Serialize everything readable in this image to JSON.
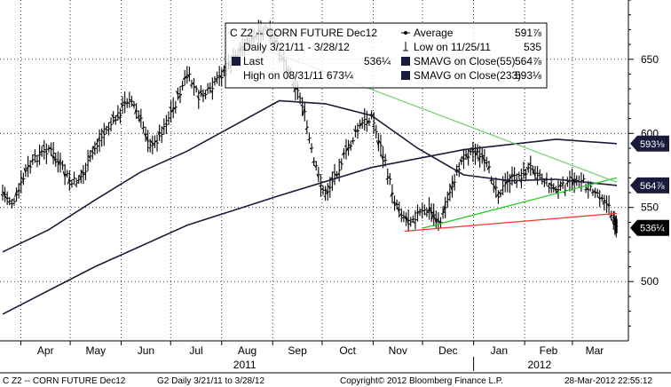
{
  "chart_data": {
    "type": "line",
    "title": "C Z2 -- CORN FUTURE Dec12",
    "subtitle": "Daily 3/21/11 - 3/28/12",
    "y_axis": {
      "side": "right",
      "ylim": [
        460,
        690
      ],
      "ticks": [
        500,
        550,
        600,
        650
      ]
    },
    "x_axis": {
      "month_labels": [
        "Apr",
        "May",
        "Jun",
        "Jul",
        "Aug",
        "Sep",
        "Oct",
        "Nov",
        "Dec",
        "Jan",
        "Feb",
        "Mar"
      ],
      "year_labels": [
        "2011",
        "2012"
      ]
    },
    "grid": true,
    "legend": {
      "placement": "top-center",
      "left": [
        {
          "label": "C Z2 -- CORN FUTURE Dec12",
          "value": ""
        },
        {
          "label": "Daily 3/21/11 - 3/28/12",
          "value": ""
        },
        {
          "label": "Last",
          "value": "536¼"
        },
        {
          "label": "High on 08/31/11 673¼",
          "value": ""
        }
      ],
      "right": [
        {
          "label": "Average",
          "value": "591⅞"
        },
        {
          "label": "Low on 11/25/11",
          "value": "535"
        },
        {
          "label": "SMAVG on Close(55)",
          "value": "564⅞"
        },
        {
          "label": "SMAVG on Close(233)",
          "value": "593⅛"
        }
      ]
    },
    "last_value_tags": [
      {
        "label": "593⅛",
        "value": 593.1,
        "color": "#1a1a3a"
      },
      {
        "label": "564⅞",
        "value": 564.9,
        "color": "#1a1a3a"
      },
      {
        "label": "536¼",
        "value": 536.25,
        "color": "#000000"
      }
    ],
    "series": [
      {
        "name": "C Z2 -- CORN FUTURE Dec12",
        "style": "ohlc-close",
        "color": "#000000",
        "points": [
          [
            "2011-03-21",
            560
          ],
          [
            "2011-03-28",
            552
          ],
          [
            "2011-04-04",
            574
          ],
          [
            "2011-04-11",
            584
          ],
          [
            "2011-04-18",
            590
          ],
          [
            "2011-04-25",
            578
          ],
          [
            "2011-05-02",
            566
          ],
          [
            "2011-05-09",
            572
          ],
          [
            "2011-05-16",
            590
          ],
          [
            "2011-05-23",
            602
          ],
          [
            "2011-05-30",
            612
          ],
          [
            "2011-06-06",
            625
          ],
          [
            "2011-06-13",
            608
          ],
          [
            "2011-06-20",
            590
          ],
          [
            "2011-06-27",
            605
          ],
          [
            "2011-07-04",
            620
          ],
          [
            "2011-07-11",
            640
          ],
          [
            "2011-07-18",
            625
          ],
          [
            "2011-07-25",
            628
          ],
          [
            "2011-08-01",
            640
          ],
          [
            "2011-08-08",
            650
          ],
          [
            "2011-08-15",
            660
          ],
          [
            "2011-08-22",
            665
          ],
          [
            "2011-08-29",
            670
          ],
          [
            "2011-09-05",
            655
          ],
          [
            "2011-09-12",
            640
          ],
          [
            "2011-09-19",
            620
          ],
          [
            "2011-09-26",
            580
          ],
          [
            "2011-10-03",
            558
          ],
          [
            "2011-10-10",
            575
          ],
          [
            "2011-10-17",
            590
          ],
          [
            "2011-10-24",
            605
          ],
          [
            "2011-10-31",
            612
          ],
          [
            "2011-11-07",
            585
          ],
          [
            "2011-11-14",
            555
          ],
          [
            "2011-11-21",
            542
          ],
          [
            "2011-11-28",
            545
          ],
          [
            "2011-12-05",
            548
          ],
          [
            "2011-12-12",
            540
          ],
          [
            "2011-12-19",
            565
          ],
          [
            "2011-12-26",
            585
          ],
          [
            "2012-01-02",
            588
          ],
          [
            "2012-01-09",
            578
          ],
          [
            "2012-01-16",
            560
          ],
          [
            "2012-01-23",
            568
          ],
          [
            "2012-01-30",
            572
          ],
          [
            "2012-02-06",
            578
          ],
          [
            "2012-02-13",
            568
          ],
          [
            "2012-02-20",
            562
          ],
          [
            "2012-02-27",
            565
          ],
          [
            "2012-03-05",
            570
          ],
          [
            "2012-03-12",
            562
          ],
          [
            "2012-03-19",
            558
          ],
          [
            "2012-03-26",
            543
          ],
          [
            "2012-03-28",
            536.25
          ]
        ]
      },
      {
        "name": "SMAVG on Close(55)",
        "style": "line",
        "color": "#1a1a3a",
        "points": [
          [
            "2011-03-21",
            520
          ],
          [
            "2011-04-18",
            535
          ],
          [
            "2011-05-16",
            555
          ],
          [
            "2011-06-13",
            574
          ],
          [
            "2011-07-11",
            588
          ],
          [
            "2011-08-08",
            605
          ],
          [
            "2011-09-05",
            622
          ],
          [
            "2011-10-03",
            620
          ],
          [
            "2011-10-31",
            612
          ],
          [
            "2011-11-28",
            590
          ],
          [
            "2011-12-26",
            572
          ],
          [
            "2012-01-23",
            568
          ],
          [
            "2012-02-20",
            569
          ],
          [
            "2012-03-28",
            564.9
          ]
        ]
      },
      {
        "name": "SMAVG on Close(233)",
        "style": "line",
        "color": "#1a1a3a",
        "points": [
          [
            "2011-03-21",
            478
          ],
          [
            "2011-05-16",
            510
          ],
          [
            "2011-07-11",
            538
          ],
          [
            "2011-09-05",
            558
          ],
          [
            "2011-10-31",
            577
          ],
          [
            "2011-12-26",
            589
          ],
          [
            "2012-02-20",
            596
          ],
          [
            "2012-03-28",
            593.1
          ]
        ]
      },
      {
        "name": "",
        "style": "trendline",
        "color": "#22cc22",
        "points": [
          [
            "2011-12-01",
            536
          ],
          [
            "2012-03-28",
            570
          ]
        ]
      },
      {
        "name": "",
        "style": "trendline",
        "color": "#7ccf7c",
        "points": [
          [
            "2011-08-20",
            660
          ],
          [
            "2012-03-28",
            567
          ]
        ]
      },
      {
        "name": "",
        "style": "trendline",
        "color": "#ff3333",
        "points": [
          [
            "2011-11-20",
            534
          ],
          [
            "2012-03-28",
            546
          ]
        ]
      }
    ]
  },
  "footer": {
    "left": "C Z2 -- CORN FUTURE Dec12",
    "mid": "G2  Daily  3/21/11 to 3/28/12",
    "copyright": "Copyright© 2012 Bloomberg Finance L.P.",
    "stamp": "28-Mar-2012 22:55:12"
  }
}
